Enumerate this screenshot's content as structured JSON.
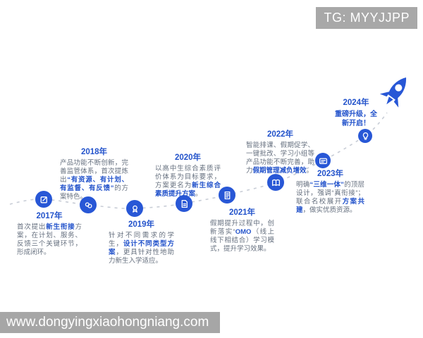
{
  "badge": {
    "text": "TG: MYYJJPP"
  },
  "watermark": {
    "text": "www.dongyingxiaohongniang.com"
  },
  "colors": {
    "accent_blue": "#2857d6",
    "year_label_blue": "#2353cb",
    "body_text": "#66707f",
    "timeline_dash": "#c8cdd6",
    "badge_bg": "#a8a8a8",
    "watermark_bg": "#a6a6a6"
  },
  "timeline": {
    "milestones": [
      {
        "year": "2017年",
        "icon": "edit-icon",
        "segments": [
          {
            "t": "首次提出",
            "b": false
          },
          {
            "t": "新生衔接",
            "b": true
          },
          {
            "t": "方案，在计划、服务、反馈三个关键环节，形成闭环。",
            "b": false
          }
        ]
      },
      {
        "year": "2018年",
        "icon": "users-icon",
        "segments": [
          {
            "t": "产品功能不断创新，完善监管体系，首次提炼出",
            "b": false
          },
          {
            "t": "“有资源、有计划、有监督、有反馈”",
            "b": true
          },
          {
            "t": "的方案特色。",
            "b": false
          }
        ]
      },
      {
        "year": "2019年",
        "icon": "medal-icon",
        "segments": [
          {
            "t": "针对不同需求的学生，",
            "b": false
          },
          {
            "t": "设计不同类型方案",
            "b": true
          },
          {
            "t": "，更具针对性地助力新生入学适应。",
            "b": false
          }
        ]
      },
      {
        "year": "2020年",
        "icon": "document-icon",
        "segments": [
          {
            "t": "以高中生综合素质评价体系为目标要求，方案更名为",
            "b": false
          },
          {
            "t": "新生综合素质提升方案",
            "b": true
          },
          {
            "t": "。",
            "b": false
          }
        ]
      },
      {
        "year": "2021年",
        "icon": "file-icon",
        "segments": [
          {
            "t": "假期提升过程中，创新落实“",
            "b": false
          },
          {
            "t": "OMO",
            "b": true
          },
          {
            "t": "（线上线下相结合）学习模式，提升学习效果。",
            "b": false
          }
        ]
      },
      {
        "year": "2022年",
        "icon": "book-icon",
        "segments": [
          {
            "t": "智能排课、假期促学、一键批改、学习小组等产品功能不断完善，助力",
            "b": false
          },
          {
            "t": "假期管理减负增效",
            "b": true
          },
          {
            "t": "。",
            "b": false
          }
        ]
      },
      {
        "year": "2023年",
        "icon": "card-icon",
        "segments": [
          {
            "t": "明确",
            "b": false
          },
          {
            "t": "“三维一体”",
            "b": true
          },
          {
            "t": "的顶层设计，强调“真衔接”；联合名校展开",
            "b": false
          },
          {
            "t": "方案共建",
            "b": true
          },
          {
            "t": "，做实优质资源。",
            "b": false
          }
        ]
      },
      {
        "year": "2024年",
        "icon": "bulb-icon",
        "segments": [
          {
            "t": "重磅升级，全新开启！",
            "b": true
          }
        ]
      }
    ]
  }
}
